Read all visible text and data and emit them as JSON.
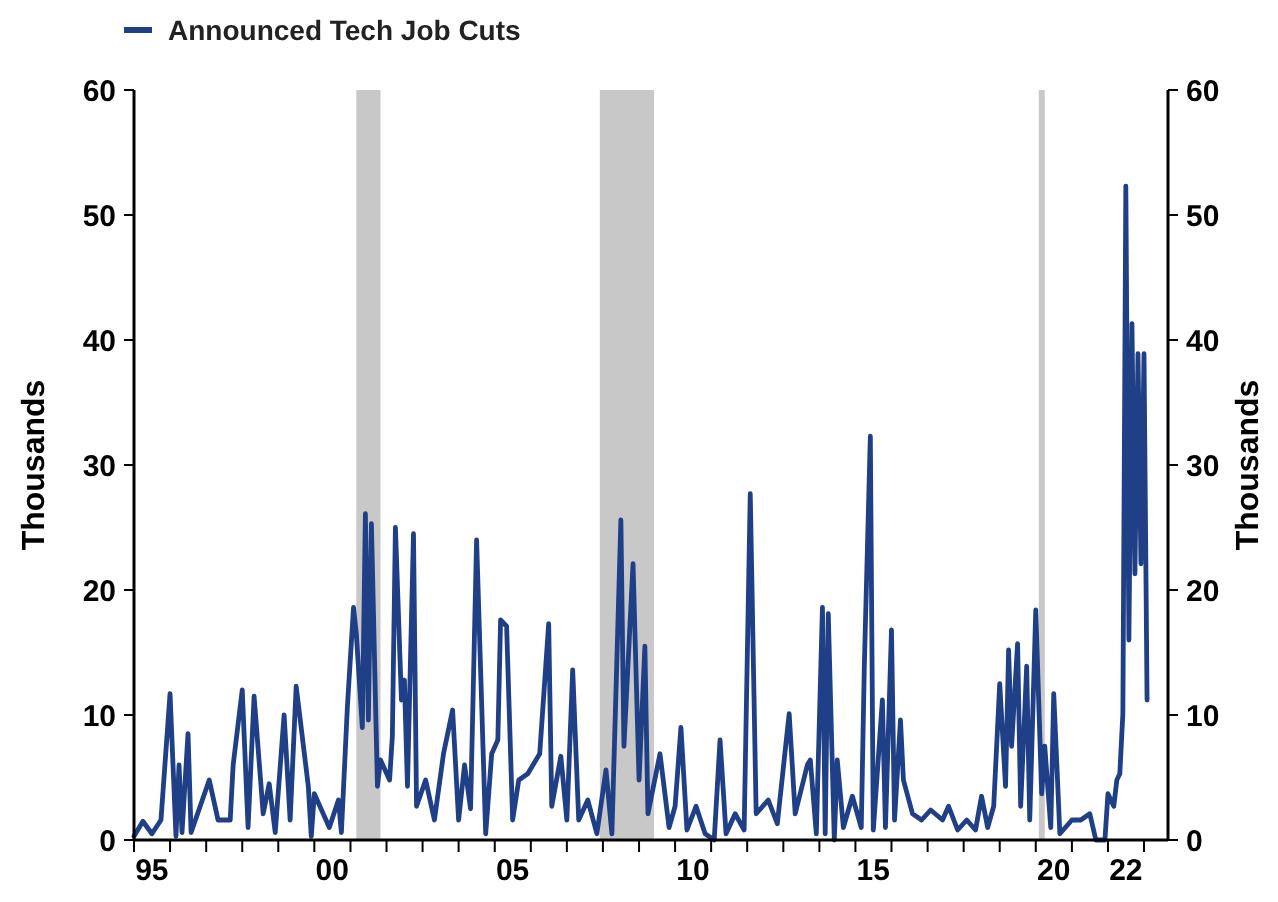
{
  "chart_data": {
    "type": "line",
    "ylabel": "Thousands",
    "y2label": "Thousands",
    "xlim": [
      "1995-01",
      "2023-09"
    ],
    "ylim": [
      0,
      60
    ],
    "yticks": [
      0,
      10,
      20,
      30,
      40,
      50,
      60
    ],
    "y2lim": [
      0,
      60
    ],
    "y2ticks": [
      0,
      10,
      20,
      30,
      40,
      50,
      60
    ],
    "xticks": [
      {
        "value": "1995-01",
        "label": null
      },
      {
        "value": "1995-07",
        "label": "95"
      },
      {
        "value": "1996-01",
        "label": null
      },
      {
        "value": "1997-01",
        "label": null
      },
      {
        "value": "1998-01",
        "label": null
      },
      {
        "value": "1999-01",
        "label": null
      },
      {
        "value": "2000-01",
        "label": null
      },
      {
        "value": "2000-07",
        "label": "00"
      },
      {
        "value": "2001-01",
        "label": null
      },
      {
        "value": "2002-01",
        "label": null
      },
      {
        "value": "2003-01",
        "label": null
      },
      {
        "value": "2004-01",
        "label": null
      },
      {
        "value": "2005-01",
        "label": null
      },
      {
        "value": "2005-07",
        "label": "05"
      },
      {
        "value": "2006-01",
        "label": null
      },
      {
        "value": "2007-01",
        "label": null
      },
      {
        "value": "2008-01",
        "label": null
      },
      {
        "value": "2009-01",
        "label": null
      },
      {
        "value": "2010-01",
        "label": null
      },
      {
        "value": "2010-07",
        "label": "10"
      },
      {
        "value": "2011-01",
        "label": null
      },
      {
        "value": "2012-01",
        "label": null
      },
      {
        "value": "2013-01",
        "label": null
      },
      {
        "value": "2014-01",
        "label": null
      },
      {
        "value": "2015-01",
        "label": null
      },
      {
        "value": "2015-07",
        "label": "15"
      },
      {
        "value": "2016-01",
        "label": null
      },
      {
        "value": "2017-01",
        "label": null
      },
      {
        "value": "2018-01",
        "label": null
      },
      {
        "value": "2019-01",
        "label": null
      },
      {
        "value": "2020-01",
        "label": null
      },
      {
        "value": "2020-07",
        "label": "20"
      },
      {
        "value": "2021-01",
        "label": null
      },
      {
        "value": "2022-01",
        "label": null
      },
      {
        "value": "2022-07",
        "label": "22"
      },
      {
        "value": "2023-01",
        "label": null
      }
    ],
    "bands": [
      {
        "axis": "x",
        "from": "2001-03",
        "to": "2001-11",
        "color": "#c8c8c8"
      },
      {
        "axis": "x",
        "from": "2007-12",
        "to": "2009-06",
        "color": "#c8c8c8"
      },
      {
        "axis": "x",
        "from": "2020-02",
        "to": "2020-04",
        "color": "#c8c8c8"
      }
    ],
    "legend": "top left",
    "grid": false,
    "series": [
      {
        "name": "Announced Tech Job Cuts",
        "color": "#1f3f86",
        "x": [
          "1995-01",
          "1995-04",
          "1995-07",
          "1995-10",
          "1996-01",
          "1996-03",
          "1996-04",
          "1996-05",
          "1996-07",
          "1996-08",
          "1997-02",
          "1997-05",
          "1997-09",
          "1997-10",
          "1998-01",
          "1998-03",
          "1998-05",
          "1998-08",
          "1998-10",
          "1998-12",
          "1999-03",
          "1999-05",
          "1999-07",
          "1999-11",
          "1999-12",
          "2000-01",
          "2000-06",
          "2000-09",
          "2000-10",
          "2000-12",
          "2001-02",
          "2001-03",
          "2001-05",
          "2001-06",
          "2001-07",
          "2001-08",
          "2001-10",
          "2001-11",
          "2002-02",
          "2002-03",
          "2002-04",
          "2002-06",
          "2002-07",
          "2002-08",
          "2002-10",
          "2002-11",
          "2003-02",
          "2003-05",
          "2003-08",
          "2003-11",
          "2004-01",
          "2004-03",
          "2004-05",
          "2004-07",
          "2004-10",
          "2004-12",
          "2005-02",
          "2005-03",
          "2005-05",
          "2005-07",
          "2005-09",
          "2005-12",
          "2006-04",
          "2006-07",
          "2006-08",
          "2006-11",
          "2007-01",
          "2007-03",
          "2007-05",
          "2007-08",
          "2007-11",
          "2008-02",
          "2008-04",
          "2008-07",
          "2008-08",
          "2008-11",
          "2009-01",
          "2009-03",
          "2009-04",
          "2009-08",
          "2009-11",
          "2010-01",
          "2010-03",
          "2010-05",
          "2010-08",
          "2010-11",
          "2011-02",
          "2011-04",
          "2011-06",
          "2011-09",
          "2011-12",
          "2012-02",
          "2012-04",
          "2012-08",
          "2012-11",
          "2013-03",
          "2013-05",
          "2013-09",
          "2013-10",
          "2013-12",
          "2014-02",
          "2014-03",
          "2014-04",
          "2014-06",
          "2014-07",
          "2014-09",
          "2014-12",
          "2015-03",
          "2015-04",
          "2015-06",
          "2015-07",
          "2015-10",
          "2015-11",
          "2016-01",
          "2016-02",
          "2016-04",
          "2016-05",
          "2016-08",
          "2016-11",
          "2017-02",
          "2017-06",
          "2017-08",
          "2017-11",
          "2018-02",
          "2018-05",
          "2018-07",
          "2018-09",
          "2018-11",
          "2019-01",
          "2019-03",
          "2019-04",
          "2019-05",
          "2019-07",
          "2019-08",
          "2019-10",
          "2019-11",
          "2020-01",
          "2020-03",
          "2020-04",
          "2020-06",
          "2020-07",
          "2020-09",
          "2021-01",
          "2021-04",
          "2021-07",
          "2021-09",
          "2021-12",
          "2022-01",
          "2022-03",
          "2022-04",
          "2022-05",
          "2022-06",
          "2022-07",
          "2022-08",
          "2022-09",
          "2022-10",
          "2022-11",
          "2022-12",
          "2023-01",
          "2023-02"
        ],
        "values": [
          0.3,
          1.5,
          0.5,
          1.6,
          11.7,
          0.3,
          6,
          0.6,
          8.5,
          0.6,
          4.8,
          1.6,
          1.6,
          6,
          12,
          1,
          11.5,
          2.1,
          4.5,
          0.6,
          10,
          1.6,
          12.3,
          4.3,
          0.3,
          3.7,
          1,
          3.2,
          0.6,
          10.7,
          18.6,
          16.5,
          9,
          26.1,
          9.6,
          25.3,
          4.3,
          6.4,
          4.8,
          8.3,
          25,
          11.2,
          12.8,
          4.3,
          24.5,
          2.7,
          4.8,
          1.6,
          6.9,
          10.4,
          1.6,
          6,
          2.5,
          24,
          0.5,
          6.9,
          8,
          17.6,
          17.1,
          1.6,
          4.8,
          5.3,
          6.9,
          17.3,
          2.7,
          6.7,
          1.6,
          13.6,
          1.6,
          3.2,
          0.5,
          5.6,
          0.5,
          25.6,
          7.5,
          22.1,
          4.8,
          15.5,
          2.1,
          6.9,
          1,
          2.7,
          9,
          0.8,
          2.7,
          0.5,
          0,
          8,
          0.5,
          2.1,
          0.8,
          27.7,
          2.1,
          3.2,
          1.3,
          10.1,
          2.1,
          6,
          6.4,
          0.5,
          18.6,
          0.5,
          18.1,
          0,
          6.4,
          1,
          3.5,
          1,
          13.9,
          32.3,
          0.8,
          11.2,
          1,
          16.8,
          1.6,
          9.6,
          4.8,
          2.1,
          1.6,
          2.4,
          1.6,
          2.7,
          0.8,
          1.6,
          0.8,
          3.5,
          1,
          2.7,
          12.5,
          4.3,
          15.2,
          7.5,
          15.7,
          2.7,
          13.9,
          1.6,
          18.4,
          3.7,
          7.5,
          1,
          11.7,
          0.5,
          1.6,
          1.6,
          2.1,
          0,
          0,
          3.7,
          2.7,
          4.8,
          5.3,
          10.1,
          52.3,
          16,
          41.3,
          21.3,
          38.9,
          22.1,
          38.9,
          11.2
        ]
      }
    ]
  }
}
